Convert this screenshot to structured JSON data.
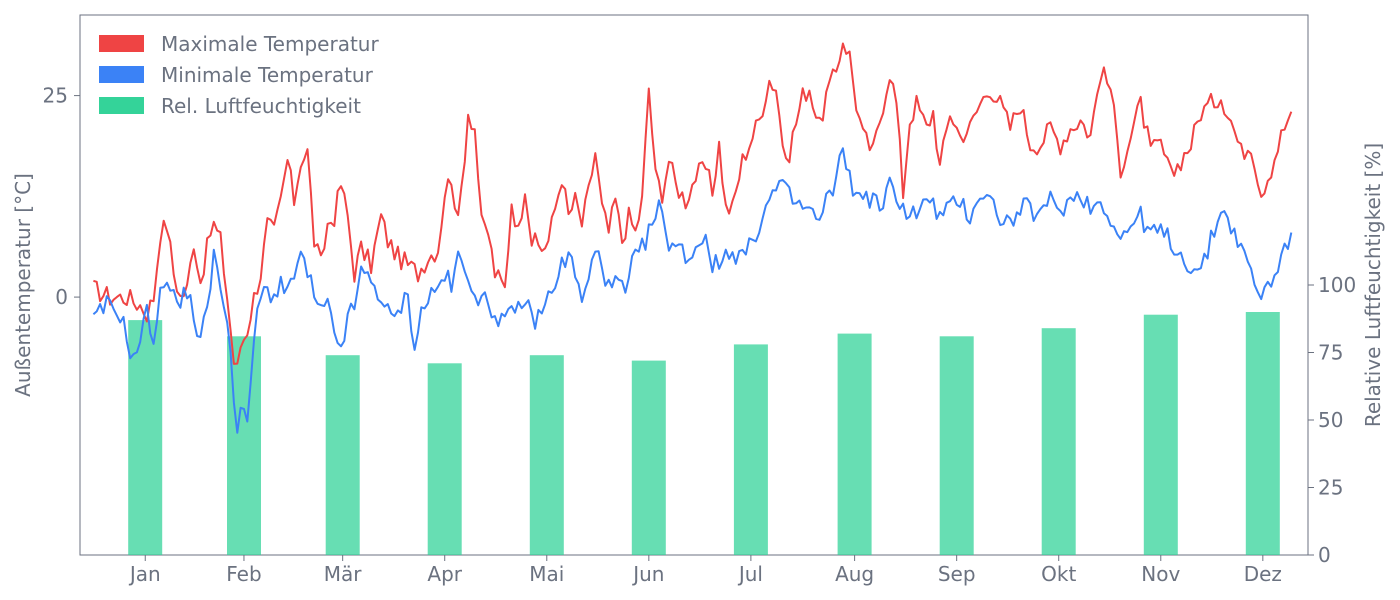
{
  "chart_data": {
    "type": "line",
    "x_axis": {
      "tick_labels": [
        "Jan",
        "Feb",
        "Mär",
        "Apr",
        "Mai",
        "Jun",
        "Jul",
        "Aug",
        "Sep",
        "Okt",
        "Nov",
        "Dez"
      ],
      "range_days": [
        -4,
        363
      ]
    },
    "y_left": {
      "label": "Außentemperatur [°C]",
      "range": [
        -32,
        35
      ],
      "ticks": [
        0,
        25
      ]
    },
    "y_right": {
      "label": "Relative Luftfeuchtigkeit [%]",
      "range": [
        0,
        200
      ],
      "ticks": [
        0,
        25,
        50,
        75,
        100
      ]
    },
    "legend": {
      "placement": "top-left",
      "entries": [
        {
          "name": "Maximale Temperatur",
          "color": "#ef4444"
        },
        {
          "name": "Minimale Temperatur",
          "color": "#3b82f6"
        },
        {
          "name": "Rel. Luftfeuchtigkeit",
          "color": "#34d399"
        }
      ]
    },
    "series": [
      {
        "name": "Maximale Temperatur",
        "color": "#ef4444",
        "axis": "left",
        "anchors": [
          [
            0,
            1
          ],
          [
            5,
            0
          ],
          [
            10,
            0
          ],
          [
            14,
            -1
          ],
          [
            16,
            -2
          ],
          [
            18,
            0
          ],
          [
            20,
            8
          ],
          [
            22,
            9
          ],
          [
            24,
            3
          ],
          [
            26,
            0
          ],
          [
            28,
            1
          ],
          [
            30,
            7
          ],
          [
            32,
            2
          ],
          [
            35,
            8
          ],
          [
            36,
            9
          ],
          [
            38,
            7
          ],
          [
            40,
            0
          ],
          [
            42,
            -8
          ],
          [
            43,
            -9
          ],
          [
            44,
            -6
          ],
          [
            46,
            -4
          ],
          [
            48,
            0
          ],
          [
            50,
            3
          ],
          [
            52,
            9
          ],
          [
            54,
            8
          ],
          [
            56,
            12
          ],
          [
            58,
            17
          ],
          [
            60,
            12
          ],
          [
            62,
            17
          ],
          [
            64,
            18
          ],
          [
            66,
            7
          ],
          [
            68,
            4
          ],
          [
            70,
            9
          ],
          [
            72,
            10
          ],
          [
            74,
            14
          ],
          [
            76,
            10
          ],
          [
            78,
            3
          ],
          [
            80,
            6
          ],
          [
            83,
            4
          ],
          [
            86,
            10
          ],
          [
            88,
            7
          ],
          [
            91,
            5
          ],
          [
            94,
            4
          ],
          [
            97,
            3
          ],
          [
            100,
            5
          ],
          [
            103,
            6
          ],
          [
            105,
            13
          ],
          [
            107,
            15
          ],
          [
            109,
            9
          ],
          [
            111,
            18
          ],
          [
            112,
            23
          ],
          [
            114,
            21
          ],
          [
            116,
            9
          ],
          [
            118,
            8
          ],
          [
            120,
            3
          ],
          [
            123,
            1
          ],
          [
            125,
            12
          ],
          [
            127,
            8
          ],
          [
            129,
            14
          ],
          [
            131,
            7
          ],
          [
            134,
            6
          ],
          [
            136,
            7
          ],
          [
            138,
            11
          ],
          [
            140,
            15
          ],
          [
            142,
            10
          ],
          [
            144,
            12
          ],
          [
            146,
            9
          ],
          [
            148,
            13
          ],
          [
            150,
            18
          ],
          [
            152,
            11
          ],
          [
            154,
            8
          ],
          [
            156,
            12
          ],
          [
            158,
            7
          ],
          [
            160,
            10
          ],
          [
            162,
            8
          ],
          [
            164,
            12
          ],
          [
            166,
            26
          ],
          [
            168,
            15
          ],
          [
            170,
            13
          ],
          [
            172,
            17
          ],
          [
            174,
            14
          ],
          [
            177,
            12
          ],
          [
            180,
            15
          ],
          [
            183,
            16
          ],
          [
            185,
            13
          ],
          [
            187,
            19
          ],
          [
            189,
            11
          ],
          [
            191,
            11
          ],
          [
            194,
            17
          ],
          [
            197,
            20
          ],
          [
            199,
            22
          ],
          [
            202,
            27
          ],
          [
            204,
            26
          ],
          [
            207,
            16
          ],
          [
            209,
            20
          ],
          [
            212,
            25
          ],
          [
            214,
            26
          ],
          [
            217,
            21
          ],
          [
            219,
            25
          ],
          [
            222,
            28
          ],
          [
            224,
            32
          ],
          [
            226,
            30
          ],
          [
            228,
            24
          ],
          [
            230,
            20
          ],
          [
            233,
            18
          ],
          [
            235,
            22
          ],
          [
            238,
            28
          ],
          [
            240,
            24
          ],
          [
            242,
            13
          ],
          [
            244,
            22
          ],
          [
            246,
            24
          ],
          [
            249,
            21
          ],
          [
            251,
            23
          ],
          [
            253,
            16
          ],
          [
            256,
            23
          ],
          [
            259,
            20
          ],
          [
            262,
            21
          ],
          [
            265,
            24
          ],
          [
            268,
            26
          ],
          [
            271,
            24
          ],
          [
            274,
            21
          ],
          [
            277,
            24
          ],
          [
            280,
            19
          ],
          [
            283,
            19
          ],
          [
            286,
            21
          ],
          [
            289,
            19
          ],
          [
            292,
            21
          ],
          [
            295,
            22
          ],
          [
            298,
            20
          ],
          [
            301,
            28
          ],
          [
            304,
            26
          ],
          [
            307,
            16
          ],
          [
            310,
            20
          ],
          [
            313,
            24
          ],
          [
            316,
            18
          ],
          [
            319,
            19
          ],
          [
            322,
            15
          ],
          [
            325,
            17
          ],
          [
            328,
            19
          ],
          [
            331,
            23
          ],
          [
            334,
            24
          ],
          [
            337,
            25
          ],
          [
            340,
            22
          ],
          [
            343,
            18
          ],
          [
            346,
            19
          ],
          [
            349,
            13
          ],
          [
            352,
            16
          ],
          [
            355,
            20
          ],
          [
            358,
            23
          ]
        ]
      },
      {
        "name": "Minimale Temperatur",
        "color": "#3b82f6",
        "axis": "left",
        "anchors": [
          [
            0,
            -3
          ],
          [
            4,
            -1
          ],
          [
            8,
            -2
          ],
          [
            12,
            -8
          ],
          [
            14,
            -5
          ],
          [
            16,
            -2
          ],
          [
            18,
            -5
          ],
          [
            20,
            0
          ],
          [
            22,
            3
          ],
          [
            24,
            0
          ],
          [
            26,
            -1
          ],
          [
            28,
            1
          ],
          [
            30,
            -2
          ],
          [
            32,
            -6
          ],
          [
            35,
            2
          ],
          [
            36,
            6
          ],
          [
            38,
            0
          ],
          [
            40,
            -2
          ],
          [
            42,
            -12
          ],
          [
            43,
            -17
          ],
          [
            44,
            -14
          ],
          [
            46,
            -16
          ],
          [
            48,
            -5
          ],
          [
            50,
            0
          ],
          [
            52,
            1
          ],
          [
            54,
            0
          ],
          [
            56,
            2
          ],
          [
            58,
            0
          ],
          [
            60,
            3
          ],
          [
            62,
            5
          ],
          [
            64,
            3
          ],
          [
            66,
            0
          ],
          [
            68,
            -2
          ],
          [
            70,
            -1
          ],
          [
            72,
            -5
          ],
          [
            74,
            -6
          ],
          [
            76,
            -3
          ],
          [
            78,
            -1
          ],
          [
            80,
            3
          ],
          [
            83,
            2
          ],
          [
            86,
            0
          ],
          [
            88,
            -2
          ],
          [
            90,
            -3
          ],
          [
            92,
            -1
          ],
          [
            94,
            0
          ],
          [
            96,
            -6
          ],
          [
            98,
            -2
          ],
          [
            100,
            0
          ],
          [
            103,
            1
          ],
          [
            105,
            3
          ],
          [
            107,
            1
          ],
          [
            109,
            5
          ],
          [
            111,
            3
          ],
          [
            113,
            2
          ],
          [
            115,
            0
          ],
          [
            118,
            -1
          ],
          [
            120,
            -2
          ],
          [
            123,
            -3
          ],
          [
            126,
            -2
          ],
          [
            129,
            0
          ],
          [
            131,
            -3
          ],
          [
            134,
            -2
          ],
          [
            136,
            0
          ],
          [
            138,
            2
          ],
          [
            140,
            4
          ],
          [
            143,
            5
          ],
          [
            146,
            -1
          ],
          [
            149,
            4
          ],
          [
            151,
            6
          ],
          [
            154,
            1
          ],
          [
            157,
            2
          ],
          [
            159,
            0
          ],
          [
            161,
            4
          ],
          [
            164,
            6
          ],
          [
            167,
            9
          ],
          [
            169,
            11
          ],
          [
            172,
            7
          ],
          [
            175,
            6
          ],
          [
            178,
            5
          ],
          [
            180,
            6
          ],
          [
            183,
            8
          ],
          [
            185,
            4
          ],
          [
            187,
            4
          ],
          [
            190,
            6
          ],
          [
            193,
            5
          ],
          [
            196,
            6
          ],
          [
            199,
            9
          ],
          [
            202,
            12
          ],
          [
            205,
            14
          ],
          [
            207,
            13
          ],
          [
            209,
            12
          ],
          [
            212,
            11
          ],
          [
            214,
            11
          ],
          [
            217,
            9
          ],
          [
            219,
            12
          ],
          [
            222,
            14
          ],
          [
            224,
            19
          ],
          [
            226,
            15
          ],
          [
            228,
            12
          ],
          [
            230,
            13
          ],
          [
            233,
            12
          ],
          [
            236,
            11
          ],
          [
            238,
            14
          ],
          [
            241,
            12
          ],
          [
            244,
            10
          ],
          [
            247,
            11
          ],
          [
            250,
            12
          ],
          [
            253,
            10
          ],
          [
            256,
            11
          ],
          [
            259,
            12
          ],
          [
            262,
            10
          ],
          [
            265,
            13
          ],
          [
            268,
            12
          ],
          [
            271,
            10
          ],
          [
            274,
            9
          ],
          [
            277,
            11
          ],
          [
            280,
            11
          ],
          [
            283,
            10
          ],
          [
            286,
            12
          ],
          [
            289,
            11
          ],
          [
            292,
            12
          ],
          [
            295,
            13
          ],
          [
            298,
            11
          ],
          [
            301,
            12
          ],
          [
            304,
            10
          ],
          [
            307,
            7
          ],
          [
            310,
            9
          ],
          [
            313,
            10
          ],
          [
            316,
            8
          ],
          [
            319,
            8
          ],
          [
            322,
            7
          ],
          [
            325,
            5
          ],
          [
            328,
            4
          ],
          [
            331,
            3
          ],
          [
            334,
            7
          ],
          [
            337,
            11
          ],
          [
            340,
            9
          ],
          [
            343,
            6
          ],
          [
            346,
            3
          ],
          [
            349,
            0
          ],
          [
            352,
            2
          ],
          [
            355,
            5
          ],
          [
            358,
            8
          ]
        ]
      },
      {
        "name": "Rel. Luftfeuchtigkeit",
        "color": "#34d399",
        "axis": "right",
        "type": "bar",
        "categories": [
          "Jan",
          "Feb",
          "Mär",
          "Apr",
          "Mai",
          "Jun",
          "Jul",
          "Aug",
          "Sep",
          "Okt",
          "Nov",
          "Dez"
        ],
        "values": [
          87,
          81,
          74,
          71,
          74,
          72,
          78,
          82,
          81,
          84,
          89,
          90
        ]
      }
    ]
  }
}
